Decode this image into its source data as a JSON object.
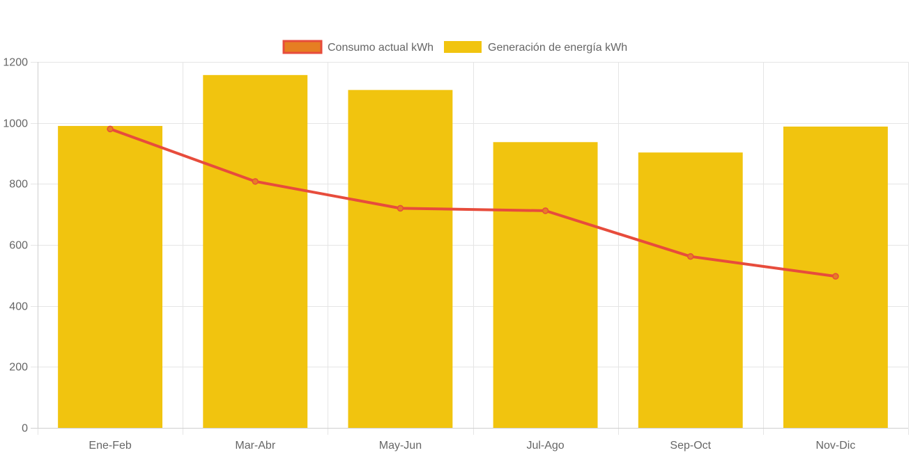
{
  "chart_data": {
    "type": "bar",
    "categories": [
      "Ene-Feb",
      "Mar-Abr",
      "May-Jun",
      "Jul-Ago",
      "Sep-Oct",
      "Nov-Dic"
    ],
    "series": [
      {
        "name": "Consumo actual kWh",
        "type": "line",
        "color": "#e74c3c",
        "fill": "#e67e22",
        "values": [
          980,
          808,
          720,
          712,
          562,
          497
        ]
      },
      {
        "name": "Generación de energía kWh",
        "type": "bar",
        "color": "#f1c40f",
        "values": [
          990,
          1157,
          1108,
          937,
          903,
          988
        ]
      }
    ],
    "ylim": [
      0,
      1200
    ],
    "yticks": [
      0,
      200,
      400,
      600,
      800,
      1000,
      1200
    ],
    "ytick_labels": [
      "0",
      "200",
      "400",
      "600",
      "800",
      "1000",
      "1200"
    ],
    "grid": true,
    "legend_position": "top"
  }
}
